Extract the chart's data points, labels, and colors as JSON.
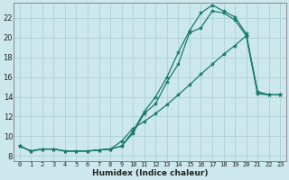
{
  "title": "",
  "xlabel": "Humidex (Indice chaleur)",
  "ylabel": "",
  "bg_color": "#cce8ec",
  "grid_color": "#b0d4d8",
  "line_color": "#1a7a6e",
  "xlim": [
    -0.5,
    23.5
  ],
  "ylim": [
    7.5,
    23.5
  ],
  "xticks": [
    0,
    1,
    2,
    3,
    4,
    5,
    6,
    7,
    8,
    9,
    10,
    11,
    12,
    13,
    14,
    15,
    16,
    17,
    18,
    19,
    20,
    21,
    22,
    23
  ],
  "yticks": [
    8,
    10,
    12,
    14,
    16,
    18,
    20,
    22
  ],
  "line1_x": [
    0,
    1,
    2,
    3,
    4,
    5,
    6,
    7,
    8,
    9,
    10,
    11,
    12,
    13,
    14,
    15,
    16,
    17,
    18,
    19,
    20,
    21,
    22,
    23
  ],
  "line1_y": [
    9.0,
    8.5,
    8.7,
    8.7,
    8.5,
    8.5,
    8.5,
    8.6,
    8.7,
    9.0,
    10.3,
    12.3,
    13.3,
    15.5,
    17.3,
    20.5,
    21.0,
    22.7,
    22.5,
    21.8,
    20.2,
    14.3,
    14.2,
    14.2
  ],
  "line2_x": [
    0,
    1,
    2,
    3,
    4,
    5,
    6,
    7,
    8,
    9,
    10,
    11,
    12,
    13,
    14,
    15,
    16,
    17,
    18,
    19,
    20,
    21,
    22,
    23
  ],
  "line2_y": [
    9.0,
    8.5,
    8.7,
    8.7,
    8.5,
    8.5,
    8.5,
    8.6,
    8.7,
    9.0,
    10.5,
    12.5,
    14.0,
    16.0,
    18.5,
    20.7,
    22.5,
    23.3,
    22.7,
    22.1,
    20.4,
    14.5,
    14.2,
    14.2
  ],
  "line3_x": [
    0,
    1,
    2,
    3,
    4,
    5,
    6,
    7,
    8,
    9,
    10,
    11,
    12,
    13,
    14,
    15,
    16,
    17,
    18,
    19,
    20,
    21,
    22,
    23
  ],
  "line3_y": [
    9.0,
    8.5,
    8.7,
    8.7,
    8.5,
    8.5,
    8.5,
    8.6,
    8.7,
    9.5,
    10.8,
    11.5,
    12.3,
    13.2,
    14.2,
    15.2,
    16.3,
    17.3,
    18.3,
    19.2,
    20.2,
    14.5,
    14.2,
    14.2
  ],
  "marker_size": 3,
  "line_width": 0.9,
  "xlabel_fontsize": 6.5,
  "xlabel_bold": true,
  "xtick_fontsize": 5.0,
  "ytick_fontsize": 6.0
}
